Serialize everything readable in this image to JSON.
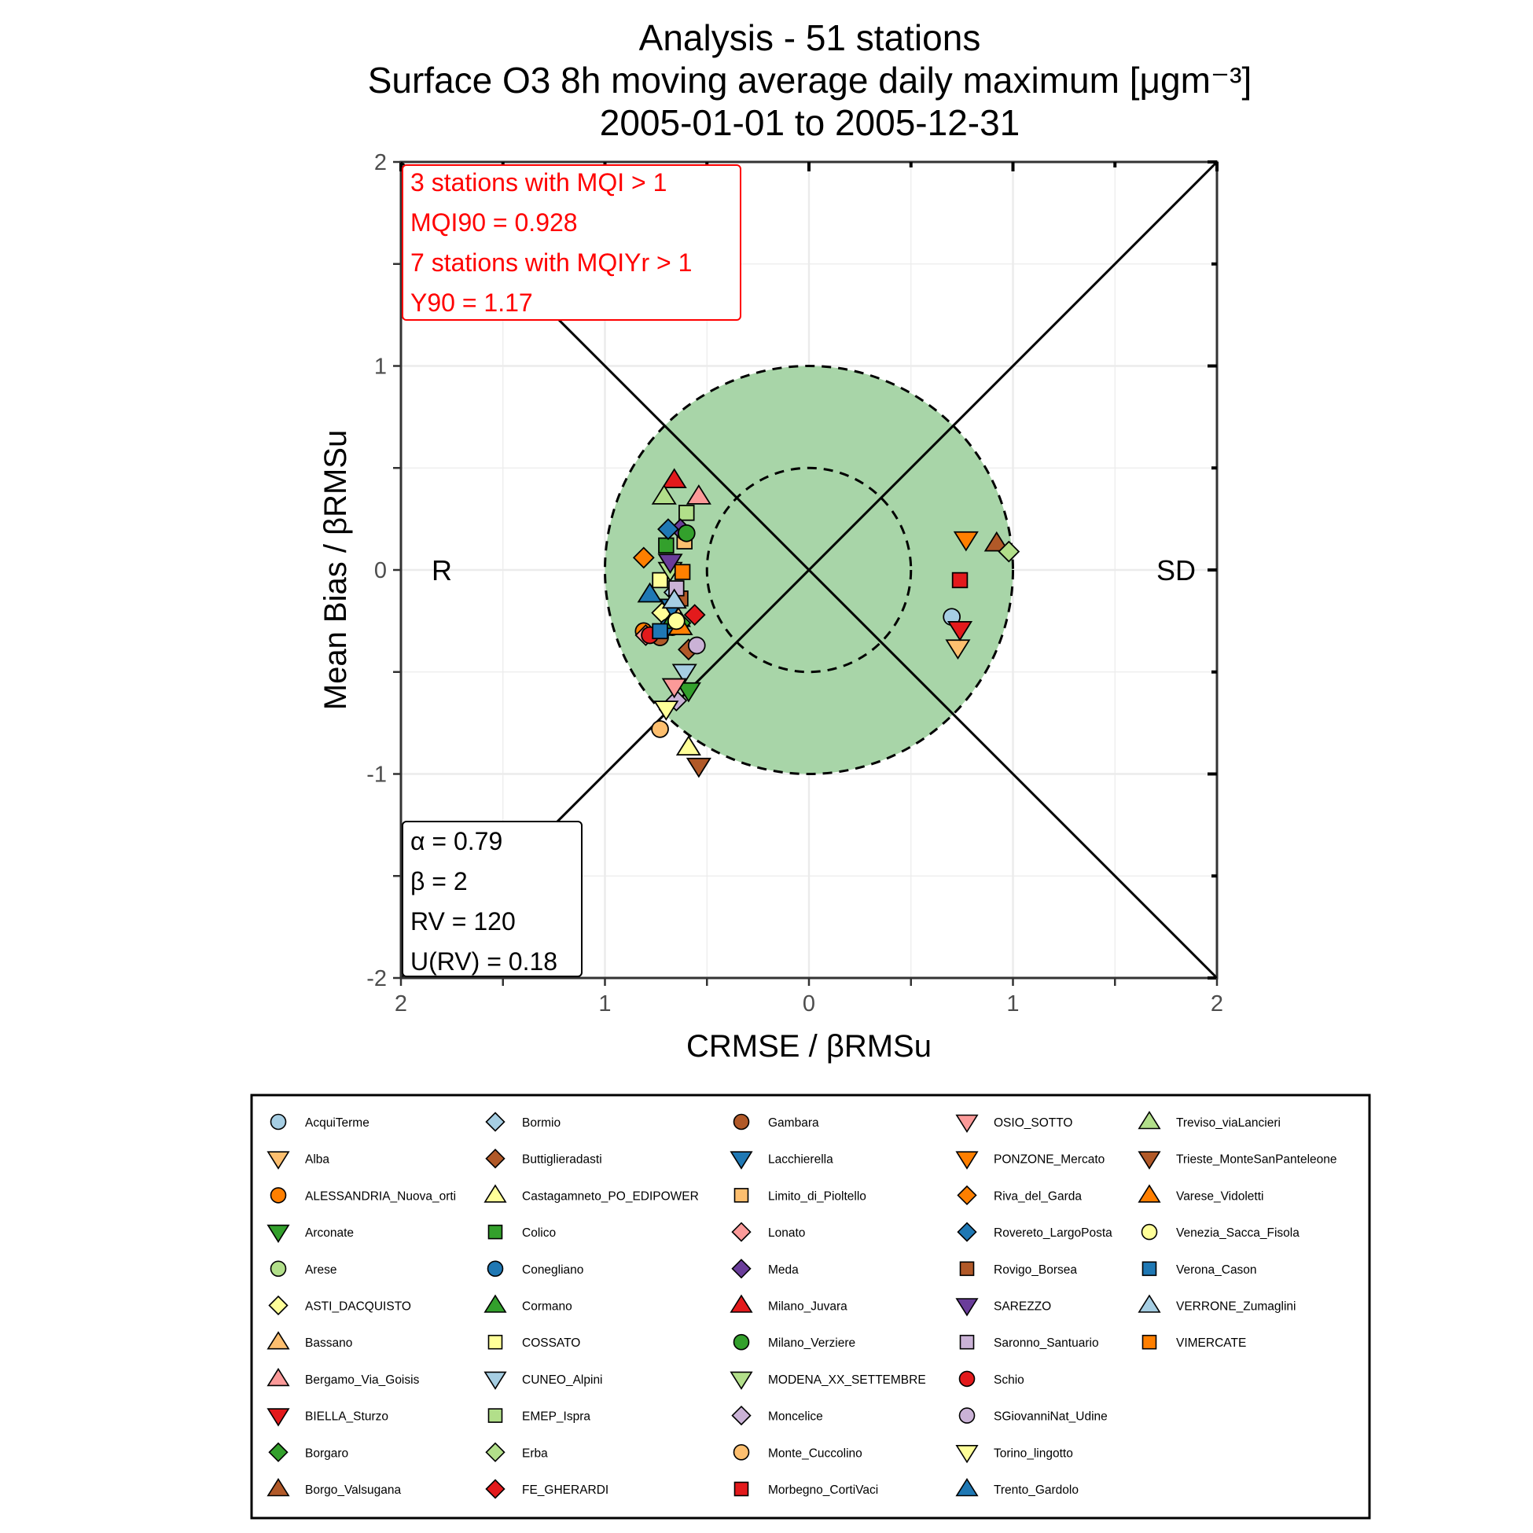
{
  "chart_data": {
    "type": "scatter",
    "title": "Analysis - 51 stations",
    "subtitle": "Surface O3 8h moving average daily maximum [μgm⁻³]",
    "period": "2005-01-01 to 2005-12-31",
    "xlabel": "CRMSE / βRMSu",
    "ylabel": "Mean Bias / βRMSu",
    "x_ticks": [
      "2",
      "1",
      "0",
      "1",
      "2"
    ],
    "y_ticks": [
      "2",
      "1",
      "0",
      "-1",
      "-2"
    ],
    "xlim": [
      -2,
      2
    ],
    "ylim": [
      -2,
      2
    ],
    "grid": true,
    "left_label": "R",
    "right_label": "SD",
    "target_circles": [
      1.0,
      0.5
    ],
    "fill_color": "#a8d5a8",
    "mqi_box": {
      "color": "#ff0000",
      "lines": [
        "3 stations with MQI > 1",
        "MQI90 = 0.928",
        "7 stations with MQIYr > 1",
        "Y90 = 1.17"
      ]
    },
    "param_box": {
      "lines": [
        "α = 0.79",
        "β = 2",
        "RV = 120",
        "U(RV) = 0.18"
      ]
    },
    "series": [
      {
        "name": "AcquiTerme",
        "shape": "circle",
        "color": "#a6cee3",
        "x": 0.7,
        "y": -0.23
      },
      {
        "name": "Alba",
        "shape": "triangle-down",
        "color": "#fdbf6f",
        "x": 0.73,
        "y": -0.38
      },
      {
        "name": "ALESSANDRIA_Nuova_orti",
        "shape": "circle",
        "color": "#ff7f00",
        "x": -0.81,
        "y": -0.3
      },
      {
        "name": "Arconate",
        "shape": "triangle-down",
        "color": "#33a02c",
        "x": -0.59,
        "y": -0.59
      },
      {
        "name": "Arese",
        "shape": "circle",
        "color": "#b2df8a",
        "x": -0.67,
        "y": -0.28
      },
      {
        "name": "ASTI_DACQUISTO",
        "shape": "diamond",
        "color": "#ffff99",
        "x": -0.72,
        "y": -0.21
      },
      {
        "name": "Bassano",
        "shape": "triangle-up",
        "color": "#fdbf6f",
        "x": -0.64,
        "y": -0.24
      },
      {
        "name": "Bergamo_Via_Goisis",
        "shape": "triangle-up",
        "color": "#fb9a99",
        "x": -0.54,
        "y": 0.36
      },
      {
        "name": "BIELLA_Sturzo",
        "shape": "triangle-down",
        "color": "#e31a1c",
        "x": 0.74,
        "y": -0.29
      },
      {
        "name": "Borgaro",
        "shape": "diamond",
        "color": "#33a02c",
        "x": -0.63,
        "y": -0.26
      },
      {
        "name": "Borgo_Valsugana",
        "shape": "triangle-up",
        "color": "#b15928",
        "x": 0.92,
        "y": 0.13
      },
      {
        "name": "Bormio",
        "shape": "diamond",
        "color": "#a6cee3",
        "x": -0.66,
        "y": -0.11
      },
      {
        "name": "Buttiglieradasti",
        "shape": "diamond",
        "color": "#b15928",
        "x": -0.59,
        "y": -0.39
      },
      {
        "name": "Castagamneto_PO_EDIPOWER",
        "shape": "triangle-up",
        "color": "#ffff99",
        "x": -0.59,
        "y": -0.87
      },
      {
        "name": "Colico",
        "shape": "square",
        "color": "#33a02c",
        "x": -0.7,
        "y": 0.12
      },
      {
        "name": "Conegliano",
        "shape": "circle",
        "color": "#1f78b4",
        "x": -0.69,
        "y": -0.28
      },
      {
        "name": "Cormano",
        "shape": "triangle-up",
        "color": "#33a02c",
        "x": -0.67,
        "y": -0.25
      },
      {
        "name": "COSSATO",
        "shape": "square",
        "color": "#ffff99",
        "x": -0.73,
        "y": -0.05
      },
      {
        "name": "CUNEO_Alpini",
        "shape": "triangle-down",
        "color": "#a6cee3",
        "x": -0.61,
        "y": -0.5
      },
      {
        "name": "EMEP_Ispra",
        "shape": "square",
        "color": "#b2df8a",
        "x": -0.6,
        "y": 0.28
      },
      {
        "name": "Erba",
        "shape": "diamond",
        "color": "#b2df8a",
        "x": 0.98,
        "y": 0.09
      },
      {
        "name": "FE_GHERARDI",
        "shape": "diamond",
        "color": "#e31a1c",
        "x": -0.56,
        "y": -0.22
      },
      {
        "name": "Gambara",
        "shape": "circle",
        "color": "#b15928",
        "x": -0.73,
        "y": -0.33
      },
      {
        "name": "Lacchierella",
        "shape": "triangle-down",
        "color": "#1f78b4",
        "x": -0.67,
        "y": -0.18
      },
      {
        "name": "Limito_di_Pioltello",
        "shape": "square",
        "color": "#fdbf6f",
        "x": -0.61,
        "y": 0.14
      },
      {
        "name": "Lonato",
        "shape": "diamond",
        "color": "#fb9a99",
        "x": -0.8,
        "y": -0.32
      },
      {
        "name": "Meda",
        "shape": "diamond",
        "color": "#6a3d9a",
        "x": -0.63,
        "y": 0.2
      },
      {
        "name": "Milano_Juvara",
        "shape": "triangle-up",
        "color": "#e31a1c",
        "x": -0.66,
        "y": 0.44
      },
      {
        "name": "Milano_Verziere",
        "shape": "circle",
        "color": "#33a02c",
        "x": -0.6,
        "y": 0.18
      },
      {
        "name": "MODENA_XX_SETTEMBRE",
        "shape": "triangle-down",
        "color": "#b2df8a",
        "x": -0.68,
        "y": 0.0
      },
      {
        "name": "Moncelice",
        "shape": "diamond",
        "color": "#cab2d6",
        "x": -0.65,
        "y": -0.64
      },
      {
        "name": "Monte_Cuccolino",
        "shape": "circle",
        "color": "#fdbf6f",
        "x": -0.73,
        "y": -0.78
      },
      {
        "name": "Morbegno_CortiVaci",
        "shape": "square",
        "color": "#e31a1c",
        "x": 0.74,
        "y": -0.05
      },
      {
        "name": "OSIO_SOTTO",
        "shape": "triangle-down",
        "color": "#fb9a99",
        "x": -0.66,
        "y": -0.57
      },
      {
        "name": "PONZONE_Mercato",
        "shape": "triangle-down",
        "color": "#ff7f00",
        "x": 0.77,
        "y": 0.15
      },
      {
        "name": "Riva_del_Garda",
        "shape": "diamond",
        "color": "#ff7f00",
        "x": -0.81,
        "y": 0.06
      },
      {
        "name": "Rovereto_LargoPosta",
        "shape": "diamond",
        "color": "#1f78b4",
        "x": -0.69,
        "y": 0.2
      },
      {
        "name": "Rovigo_Borsea",
        "shape": "square",
        "color": "#b15928",
        "x": -0.63,
        "y": -0.14
      },
      {
        "name": "SAREZZO",
        "shape": "triangle-down",
        "color": "#6a3d9a",
        "x": -0.68,
        "y": 0.04
      },
      {
        "name": "Saronno_Santuario",
        "shape": "square",
        "color": "#cab2d6",
        "x": -0.65,
        "y": -0.09
      },
      {
        "name": "Schio",
        "shape": "circle",
        "color": "#e31a1c",
        "x": -0.78,
        "y": -0.32
      },
      {
        "name": "SGiovanniNat_Udine",
        "shape": "circle",
        "color": "#cab2d6",
        "x": -0.55,
        "y": -0.37
      },
      {
        "name": "Torino_lingotto",
        "shape": "triangle-down",
        "color": "#ffff99",
        "x": -0.7,
        "y": -0.68
      },
      {
        "name": "Trento_Gardolo",
        "shape": "triangle-up",
        "color": "#1f78b4",
        "x": -0.78,
        "y": -0.12
      },
      {
        "name": "Treviso_viaLancieri",
        "shape": "triangle-up",
        "color": "#b2df8a",
        "x": -0.71,
        "y": 0.36
      },
      {
        "name": "Trieste_MonteSanPanteleone",
        "shape": "triangle-down",
        "color": "#b15928",
        "x": -0.54,
        "y": -0.96
      },
      {
        "name": "Varese_Vidoletti",
        "shape": "triangle-up",
        "color": "#ff7f00",
        "x": -0.63,
        "y": -0.28
      },
      {
        "name": "Venezia_Sacca_Fisola",
        "shape": "circle",
        "color": "#ffff99",
        "x": -0.65,
        "y": -0.25
      },
      {
        "name": "Verona_Cason",
        "shape": "square",
        "color": "#1f78b4",
        "x": -0.73,
        "y": -0.3
      },
      {
        "name": "VERRONE_Zumaglini",
        "shape": "triangle-up",
        "color": "#a6cee3",
        "x": -0.66,
        "y": -0.15
      },
      {
        "name": "VIMERCATE",
        "shape": "square",
        "color": "#ff7f00",
        "x": -0.62,
        "y": -0.01
      }
    ]
  }
}
